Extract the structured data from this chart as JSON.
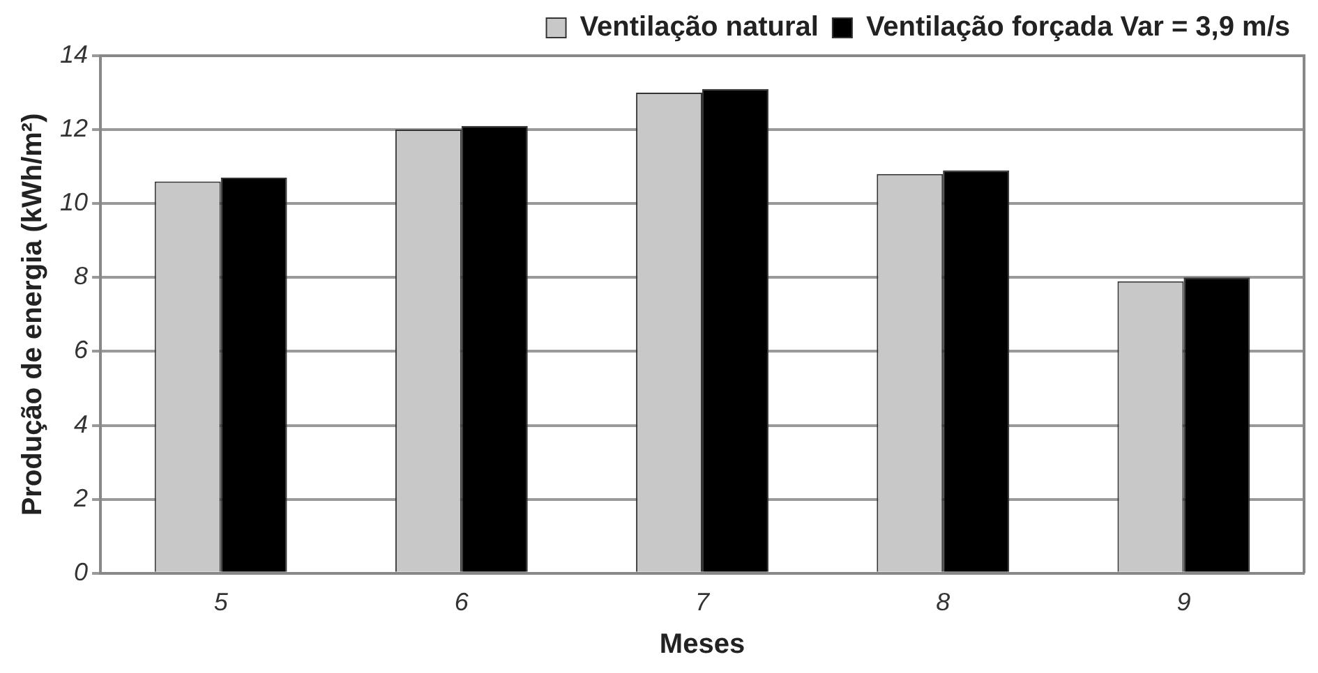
{
  "chart_data": {
    "type": "bar",
    "xlabel": "Meses",
    "ylabel": "Produção de energia (kWh/m²)",
    "categories": [
      "5",
      "6",
      "7",
      "8",
      "9"
    ],
    "series": [
      {
        "name": "Ventilação natural",
        "color": "#c8c8c8",
        "values": [
          10.6,
          12.0,
          13.0,
          10.8,
          7.9
        ]
      },
      {
        "name": "Ventilação forçada Var = 3,9 m/s",
        "color": "#000000",
        "values": [
          10.7,
          12.1,
          13.1,
          10.9,
          8.0
        ]
      }
    ],
    "ylim": [
      0,
      14
    ],
    "yticks": [
      0,
      2,
      4,
      6,
      8,
      10,
      12,
      14
    ],
    "grid": "y",
    "legend": "top right"
  }
}
